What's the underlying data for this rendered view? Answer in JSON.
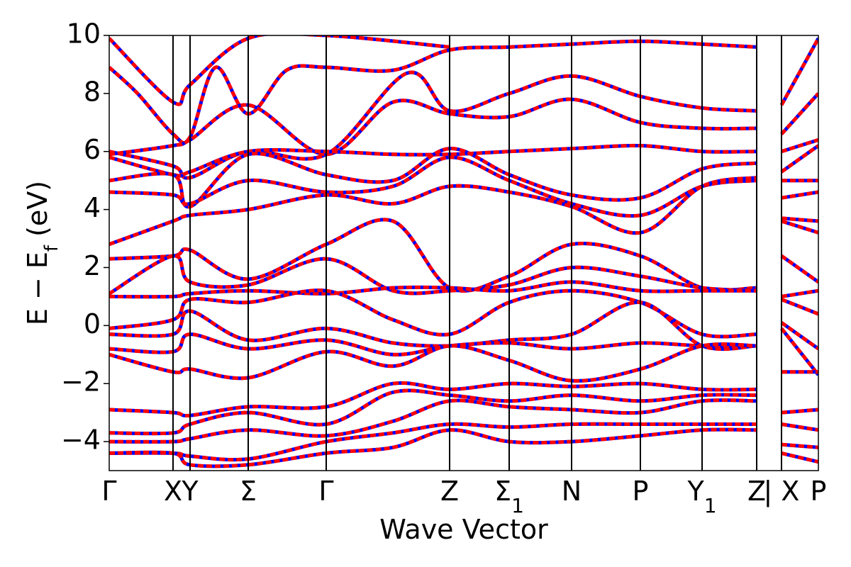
{
  "chart_data": {
    "type": "line",
    "title": "",
    "xlabel": "Wave Vector",
    "ylabel": "E − E",
    "ylabel_subscript": "f",
    "ylabel_unit": " (eV)",
    "ylim": [
      -5,
      10
    ],
    "y_ticks": [
      -4,
      -2,
      0,
      2,
      4,
      6,
      8,
      10
    ],
    "y_tick_labels": [
      "−4",
      "−2",
      "0",
      "2",
      "4",
      "6",
      "8",
      "10"
    ],
    "grid": false,
    "legend": "none",
    "xlim": [
      0,
      100
    ],
    "kpoints": [
      {
        "label": "Γ",
        "x": 0
      },
      {
        "label": "X",
        "x": 9
      },
      {
        "label": "Y",
        "x": 11.4
      },
      {
        "label": "Σ",
        "x": 19.6
      },
      {
        "label": "Γ",
        "x": 30.6
      },
      {
        "label": "Z",
        "x": 48
      },
      {
        "label": "Σ",
        "sub": "1",
        "x": 56.4
      },
      {
        "label": "N",
        "x": 65.2
      },
      {
        "label": "P",
        "x": 74.9
      },
      {
        "label": "Y",
        "sub": "1",
        "x": 83.6
      },
      {
        "label": "Z",
        "x": 91.3
      },
      {
        "label": "X",
        "x": 94.8,
        "prefix": "|"
      },
      {
        "label": "P",
        "x": 100
      }
    ],
    "series_colors": {
      "primary": "#ff0000",
      "overlay": "#0000ff"
    },
    "series": [
      {
        "values_x": [
          0,
          9,
          11.4,
          19.6,
          30.6,
          48
        ],
        "values_y": [
          9.9,
          7.7,
          8.3,
          9.9,
          10.0,
          9.6
        ]
      },
      {
        "values_x": [
          0,
          4,
          9,
          11.4,
          15,
          19.6,
          25,
          30.6,
          40,
          48,
          56.4,
          65.2,
          74.9,
          83.6,
          91.3
        ],
        "values_y": [
          8.9,
          8.0,
          6.6,
          6.5,
          8.9,
          7.3,
          8.8,
          8.9,
          8.8,
          9.5,
          9.6,
          9.7,
          9.8,
          9.7,
          9.6
        ]
      },
      {
        "values_x": [
          0,
          9,
          11.4,
          19.6,
          30.6,
          42,
          48,
          56.4,
          65.2,
          74.9,
          83.6,
          91.3
        ],
        "values_y": [
          6.0,
          5.5,
          5.1,
          6.0,
          5.9,
          8.7,
          7.4,
          8.0,
          8.6,
          7.9,
          7.5,
          7.4
        ]
      },
      {
        "values_x": [
          0,
          9,
          11.4,
          19.6,
          30.6,
          40,
          48,
          56.4,
          65.2,
          74.9,
          83.6,
          91.3
        ],
        "values_y": [
          5.9,
          6.2,
          6.4,
          7.6,
          5.9,
          7.7,
          7.3,
          7.2,
          7.8,
          7.0,
          6.8,
          6.8
        ]
      },
      {
        "values_x": [
          0,
          9,
          11.4,
          19.6,
          30.6,
          40,
          48,
          56.4,
          65.2,
          74.9,
          83.6,
          91.3
        ],
        "values_y": [
          5.8,
          5.2,
          5.3,
          6.0,
          6.0,
          5.9,
          5.9,
          6.0,
          6.1,
          6.2,
          6.0,
          6.0
        ]
      },
      {
        "values_x": [
          0,
          9,
          11.4,
          19.6,
          30.6,
          40,
          48,
          56.4,
          65.2,
          74.9,
          83.6,
          91.3
        ],
        "values_y": [
          5.0,
          5.2,
          4.1,
          5.9,
          5.2,
          5.0,
          6.1,
          5.2,
          4.5,
          4.4,
          5.4,
          5.6
        ]
      },
      {
        "values_x": [
          0,
          9,
          11.4,
          19.6,
          30.6,
          40,
          48,
          56.4,
          65.2,
          74.9,
          83.6,
          91.3
        ],
        "values_y": [
          4.6,
          4.5,
          4.2,
          5.0,
          4.6,
          4.8,
          5.8,
          5.0,
          4.2,
          3.8,
          4.8,
          5.0
        ]
      },
      {
        "values_x": [
          0,
          9,
          11.4,
          19.6,
          30.6,
          40,
          48,
          56.4,
          65.2,
          74.9,
          83.6,
          91.3
        ],
        "values_y": [
          2.8,
          3.6,
          3.8,
          4.0,
          4.5,
          4.2,
          4.8,
          4.6,
          4.1,
          3.2,
          4.8,
          5.1
        ]
      },
      {
        "values_x": [
          0,
          9,
          11.4,
          19.6,
          30.6,
          40,
          48,
          56.4,
          65.2,
          74.9,
          83.6,
          91.3
        ],
        "values_y": [
          2.3,
          2.4,
          2.6,
          1.6,
          2.8,
          3.6,
          1.3,
          1.7,
          2.8,
          2.4,
          1.3,
          1.3
        ]
      },
      {
        "values_x": [
          0,
          9,
          11.4,
          19.6,
          30.6,
          40,
          48,
          56.4,
          65.2,
          74.9,
          83.6,
          91.3
        ],
        "values_y": [
          1.1,
          2.4,
          1.5,
          1.4,
          2.3,
          1.2,
          1.2,
          1.4,
          2.0,
          1.7,
          1.3,
          1.2
        ]
      },
      {
        "values_x": [
          0,
          9,
          11.4,
          19.6,
          30.6,
          40,
          48,
          56.4,
          65.2,
          74.9,
          83.6,
          91.3
        ],
        "values_y": [
          1.0,
          1.0,
          1.1,
          1.2,
          1.1,
          1.3,
          1.3,
          1.2,
          1.5,
          1.2,
          1.2,
          1.2
        ]
      },
      {
        "values_x": [
          0,
          9,
          11.4,
          19.6,
          30.6,
          40,
          48,
          56.4,
          65.2,
          74.9,
          83.6,
          91.3
        ],
        "values_y": [
          -0.1,
          0.2,
          0.9,
          0.8,
          1.2,
          0.2,
          -0.3,
          0.8,
          1.2,
          0.8,
          -0.3,
          -0.3
        ]
      },
      {
        "values_x": [
          0,
          9,
          11.4,
          19.6,
          30.6,
          40,
          48,
          56.4,
          65.2,
          74.9,
          83.6,
          91.3
        ],
        "values_y": [
          -0.3,
          -0.3,
          0.5,
          -0.5,
          -0.1,
          -0.6,
          -0.7,
          -0.5,
          -0.3,
          0.8,
          -0.7,
          -0.7
        ]
      },
      {
        "values_x": [
          0,
          9,
          11.4,
          19.6,
          30.6,
          40,
          48,
          56.4,
          65.2,
          74.9,
          83.6,
          91.3
        ],
        "values_y": [
          -0.8,
          -0.9,
          -0.3,
          -0.8,
          -0.5,
          -1.0,
          -0.7,
          -0.6,
          -0.8,
          -0.6,
          -0.7,
          -0.7
        ]
      },
      {
        "values_x": [
          0,
          9,
          11.4,
          19.6,
          30.6,
          40,
          48,
          56.4,
          65.2,
          74.9,
          83.6,
          91.3
        ],
        "values_y": [
          -1.0,
          -1.6,
          -1.5,
          -1.8,
          -0.9,
          -1.4,
          -0.7,
          -1.2,
          -1.9,
          -1.5,
          -0.7,
          -0.7
        ]
      },
      {
        "values_x": [
          0,
          9,
          11.4,
          19.6,
          30.6,
          40,
          48,
          56.4,
          65.2,
          74.9,
          83.6,
          91.3
        ],
        "values_y": [
          -2.9,
          -3.0,
          -3.1,
          -2.8,
          -2.8,
          -2.0,
          -2.2,
          -2.0,
          -2.1,
          -2.0,
          -2.2,
          -2.2
        ]
      },
      {
        "values_x": [
          0,
          9,
          11.4,
          19.6,
          30.6,
          40,
          48,
          56.4,
          65.2,
          74.9,
          83.6,
          91.3
        ],
        "values_y": [
          -3.7,
          -3.7,
          -3.4,
          -3.0,
          -3.4,
          -2.3,
          -2.4,
          -2.6,
          -2.4,
          -2.6,
          -2.4,
          -2.4
        ]
      },
      {
        "values_x": [
          0,
          9,
          11.4,
          19.6,
          30.6,
          40,
          48,
          56.4,
          65.2,
          74.9,
          83.6,
          91.3
        ],
        "values_y": [
          -4.0,
          -4.0,
          -3.9,
          -3.6,
          -3.8,
          -3.3,
          -2.6,
          -2.8,
          -2.9,
          -3.0,
          -2.6,
          -2.6
        ]
      },
      {
        "values_x": [
          0,
          9,
          11.4,
          19.6,
          30.6,
          40,
          48,
          56.4,
          65.2,
          74.9,
          83.6,
          91.3
        ],
        "values_y": [
          -4.4,
          -4.4,
          -4.5,
          -4.6,
          -4.0,
          -3.7,
          -3.4,
          -3.5,
          -3.4,
          -3.4,
          -3.4,
          -3.4
        ]
      },
      {
        "values_x": [
          0,
          9,
          11.4,
          19.6,
          30.6,
          40,
          48,
          56.4,
          65.2,
          74.9,
          83.6,
          91.3
        ],
        "values_y": [
          -4.4,
          -4.4,
          -4.8,
          -4.8,
          -4.4,
          -4.2,
          -3.6,
          -4.0,
          -4.0,
          -3.8,
          -3.6,
          -3.6
        ]
      },
      {
        "values_x": [
          94.8,
          100
        ],
        "values_y": [
          7.6,
          9.9
        ]
      },
      {
        "values_x": [
          94.8,
          100
        ],
        "values_y": [
          6.6,
          8.0
        ]
      },
      {
        "values_x": [
          94.8,
          100
        ],
        "values_y": [
          6.0,
          6.4
        ]
      },
      {
        "values_x": [
          94.8,
          100
        ],
        "values_y": [
          5.3,
          6.2
        ]
      },
      {
        "values_x": [
          94.8,
          100
        ],
        "values_y": [
          5.0,
          5.0
        ]
      },
      {
        "values_x": [
          94.8,
          100
        ],
        "values_y": [
          4.4,
          4.6
        ]
      },
      {
        "values_x": [
          94.8,
          100
        ],
        "values_y": [
          3.7,
          3.6
        ]
      },
      {
        "values_x": [
          94.8,
          100
        ],
        "values_y": [
          3.6,
          3.2
        ]
      },
      {
        "values_x": [
          94.8,
          100
        ],
        "values_y": [
          2.4,
          1.5
        ]
      },
      {
        "values_x": [
          94.8,
          100
        ],
        "values_y": [
          1.0,
          1.2
        ]
      },
      {
        "values_x": [
          94.8,
          100
        ],
        "values_y": [
          0.9,
          0.4
        ]
      },
      {
        "values_x": [
          94.8,
          100
        ],
        "values_y": [
          0.1,
          -0.8
        ]
      },
      {
        "values_x": [
          94.8,
          100
        ],
        "values_y": [
          -0.1,
          -1.7
        ]
      },
      {
        "values_x": [
          94.8,
          100
        ],
        "values_y": [
          -1.6,
          -1.6
        ]
      },
      {
        "values_x": [
          94.8,
          100
        ],
        "values_y": [
          -3.0,
          -2.9
        ]
      },
      {
        "values_x": [
          94.8,
          100
        ],
        "values_y": [
          -3.4,
          -3.6
        ]
      },
      {
        "values_x": [
          94.8,
          100
        ],
        "values_y": [
          -4.1,
          -4.2
        ]
      },
      {
        "values_x": [
          94.8,
          100
        ],
        "values_y": [
          -4.4,
          -4.7
        ]
      }
    ]
  }
}
